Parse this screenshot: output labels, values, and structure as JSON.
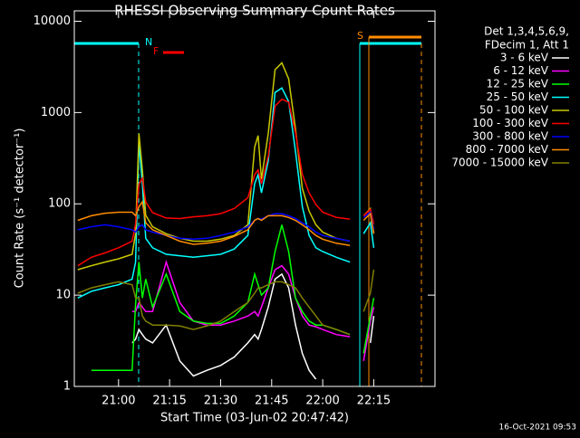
{
  "chart_data": {
    "type": "line",
    "title": "RHESSI Observing Summary Count Rates",
    "x_label": "Start Time (03-Jun-02 20:47:42)",
    "y_label": "Count Rate (s⁻¹ detector⁻¹)",
    "footer": "16-Oct-2021 09:53",
    "legend_title": [
      "Det 1,3,4,5,6,9,",
      "FDecim 1, Att 1"
    ],
    "legend": "right",
    "log_y": true,
    "annotations": [
      {
        "text": "N",
        "color": "#00ffff"
      },
      {
        "text": "F",
        "color": "#ff0000"
      },
      {
        "text": "S",
        "color": "#ff8c00"
      }
    ],
    "xlim": [
      "20:47",
      "22:33"
    ],
    "xticks": [
      "21:00",
      "21:15",
      "21:30",
      "21:45",
      "22:00",
      "22:15"
    ],
    "ylim": [
      1,
      13000
    ],
    "yticks": [
      1,
      10,
      100,
      1000,
      10000
    ],
    "x": [
      "20:48",
      "20:52",
      "20:56",
      "21:00",
      "21:04",
      "21:05",
      "21:06",
      "21:07",
      "21:08",
      "21:10",
      "21:14",
      "21:18",
      "21:22",
      "21:26",
      "21:30",
      "21:34",
      "21:38",
      "21:40",
      "21:41",
      "21:42",
      "21:44",
      "21:46",
      "21:48",
      "21:50",
      "21:52",
      "21:54",
      "21:56",
      "21:58",
      "22:00",
      "22:04",
      "22:08",
      "22:10",
      "22:12",
      "22:14",
      "22:15"
    ],
    "series": [
      {
        "name": "3 - 6 keV",
        "color": "#ffffff",
        "values": [
          null,
          null,
          null,
          null,
          3.0,
          3.3,
          4.2,
          3.7,
          3.3,
          3.0,
          4.7,
          1.9,
          1.3,
          1.5,
          1.7,
          2.1,
          3.0,
          3.7,
          3.3,
          4.2,
          7.4,
          15,
          17,
          12,
          4.7,
          2.3,
          1.5,
          1.2,
          null,
          null,
          null,
          null,
          null,
          3.0,
          5.9
        ]
      },
      {
        "name": "6 - 12 keV",
        "color": "#ff00ff",
        "values": [
          null,
          null,
          null,
          null,
          6.6,
          6.6,
          8.3,
          7.4,
          6.6,
          6.6,
          23,
          8.3,
          5.2,
          4.7,
          4.7,
          5.2,
          5.9,
          6.6,
          5.9,
          7.4,
          12,
          19,
          21,
          17,
          9.3,
          5.9,
          4.7,
          4.5,
          4.2,
          3.7,
          3.5,
          null,
          1.9,
          5.2,
          7.4
        ]
      },
      {
        "name": "12 - 25 keV",
        "color": "#00ff00",
        "values": [
          null,
          1.5,
          1.5,
          1.5,
          1.5,
          8.0,
          23,
          9.3,
          15,
          7.4,
          17,
          6.6,
          5.2,
          4.9,
          4.9,
          5.9,
          8.3,
          17,
          13,
          10,
          12,
          30,
          59,
          30,
          9.3,
          6.6,
          5.2,
          4.7,
          4.7,
          4.2,
          3.7,
          null,
          2.3,
          5.9,
          9.3
        ]
      },
      {
        "name": "25 - 50 keV",
        "color": "#00ffff",
        "values": [
          9.3,
          11,
          12,
          13,
          15,
          23,
          465,
          166,
          42,
          33,
          28,
          27,
          26,
          27,
          28,
          32,
          45,
          166,
          209,
          132,
          295,
          1660,
          1860,
          1320,
          372,
          93,
          45,
          33,
          30,
          26,
          23,
          null,
          47,
          62,
          33
        ]
      },
      {
        "name": "50 - 100 keV",
        "color": "#c8c800",
        "values": [
          19,
          21,
          23,
          25,
          28,
          47,
          590,
          235,
          75,
          56,
          47,
          42,
          39,
          39,
          41,
          45,
          59,
          417,
          560,
          186,
          590,
          2950,
          3500,
          2340,
          660,
          148,
          83,
          59,
          49,
          42,
          39,
          null,
          74,
          89,
          47
        ]
      },
      {
        "name": "100 - 300 keV",
        "color": "#ff0000",
        "values": [
          21,
          26,
          29,
          33,
          39,
          60,
          165,
          190,
          105,
          80,
          70,
          69,
          72,
          74,
          78,
          89,
          117,
          209,
          235,
          166,
          331,
          1175,
          1400,
          1300,
          600,
          210,
          132,
          98,
          81,
          71,
          68,
          null,
          74,
          87,
          60
        ]
      },
      {
        "name": "300 - 800 keV",
        "color": "#0000ff",
        "values": [
          52,
          56,
          59,
          56,
          52,
          49,
          56,
          59,
          52,
          49,
          45,
          42,
          41,
          42,
          45,
          49,
          56,
          66,
          69,
          68,
          74,
          78,
          78,
          74,
          69,
          62,
          56,
          49,
          45,
          42,
          39,
          null,
          71,
          81,
          52
        ]
      },
      {
        "name": "800 - 7000 keV",
        "color": "#ff8c00",
        "values": [
          66,
          74,
          79,
          81,
          81,
          74,
          93,
          105,
          62,
          52,
          45,
          39,
          36,
          37,
          39,
          44,
          52,
          66,
          69,
          66,
          74,
          74,
          74,
          71,
          66,
          59,
          52,
          45,
          41,
          37,
          35,
          null,
          66,
          78,
          47
        ]
      },
      {
        "name": "7000 - 15000 keV",
        "color": "#808000",
        "values": [
          10.5,
          12,
          13,
          14,
          13,
          9.3,
          9.3,
          5.9,
          5.2,
          4.7,
          4.7,
          4.6,
          4.2,
          4.6,
          5.2,
          6.6,
          8.3,
          10.5,
          12,
          12,
          13,
          14,
          14,
          13,
          12,
          9.3,
          7.4,
          5.9,
          4.7,
          4.2,
          3.7,
          null,
          6.6,
          10.5,
          19
        ]
      }
    ]
  }
}
